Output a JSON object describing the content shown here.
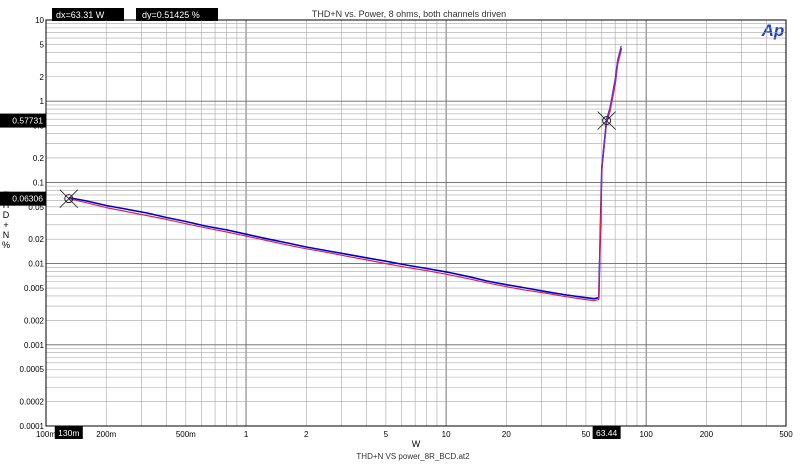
{
  "chart_data": {
    "type": "line",
    "title": "THD+N vs. Power, 8 ohms, both channels driven",
    "xlabel": "W",
    "ylabel_chars": [
      "T",
      "H",
      "D",
      "+",
      "N",
      "%"
    ],
    "footer": "THD+N VS power_8R_BCD.at2",
    "logo": "Ap",
    "x_scale": "log",
    "y_scale": "log",
    "xlim": [
      0.1,
      500
    ],
    "ylim": [
      0.0001,
      10
    ],
    "grid": true,
    "x_ticks": [
      {
        "v": 0.1,
        "label": "100m"
      },
      {
        "v": 0.2,
        "label": "200m"
      },
      {
        "v": 0.5,
        "label": "500m"
      },
      {
        "v": 1,
        "label": "1"
      },
      {
        "v": 2,
        "label": "2"
      },
      {
        "v": 5,
        "label": "5"
      },
      {
        "v": 10,
        "label": "10"
      },
      {
        "v": 20,
        "label": "20"
      },
      {
        "v": 50,
        "label": "50"
      },
      {
        "v": 100,
        "label": "100"
      },
      {
        "v": 200,
        "label": "200"
      },
      {
        "v": 500,
        "label": "500"
      }
    ],
    "y_ticks": [
      {
        "v": 10,
        "label": "10"
      },
      {
        "v": 5,
        "label": "5"
      },
      {
        "v": 2,
        "label": "2"
      },
      {
        "v": 1,
        "label": "1"
      },
      {
        "v": 0.5,
        "label": "0.5"
      },
      {
        "v": 0.2,
        "label": "0.2"
      },
      {
        "v": 0.1,
        "label": "0.1"
      },
      {
        "v": 0.05,
        "label": "0.05"
      },
      {
        "v": 0.02,
        "label": "0.02"
      },
      {
        "v": 0.01,
        "label": "0.01"
      },
      {
        "v": 0.005,
        "label": "0.005"
      },
      {
        "v": 0.002,
        "label": "0.002"
      },
      {
        "v": 0.001,
        "label": "0.001"
      },
      {
        "v": 0.0005,
        "label": "0.0005"
      },
      {
        "v": 0.0002,
        "label": "0.0002"
      },
      {
        "v": 0.0001,
        "label": "0.0001"
      }
    ],
    "series": [
      {
        "color": "#0000cc",
        "x": [
          0.13,
          0.16,
          0.2,
          0.25,
          0.32,
          0.4,
          0.5,
          0.63,
          0.8,
          1.0,
          1.3,
          1.6,
          2.0,
          2.5,
          3.2,
          4.0,
          5.0,
          6.3,
          8.0,
          10,
          13,
          16,
          20,
          25,
          32,
          40,
          50,
          55,
          58,
          60,
          63.44,
          66,
          70,
          72,
          75
        ],
        "y": [
          0.065,
          0.059,
          0.052,
          0.047,
          0.042,
          0.037,
          0.033,
          0.029,
          0.026,
          0.023,
          0.02,
          0.018,
          0.016,
          0.0145,
          0.013,
          0.0118,
          0.0107,
          0.0096,
          0.0087,
          0.0079,
          0.0069,
          0.0061,
          0.0055,
          0.005,
          0.0045,
          0.0041,
          0.0038,
          0.0037,
          0.0038,
          0.15,
          0.58,
          0.8,
          1.7,
          3.0,
          4.5
        ]
      },
      {
        "color": "#dd2255",
        "x": [
          0.13,
          0.16,
          0.2,
          0.25,
          0.32,
          0.4,
          0.5,
          0.63,
          0.8,
          1.0,
          1.3,
          1.6,
          2.0,
          2.5,
          3.2,
          4.0,
          5.0,
          6.3,
          8.0,
          10,
          13,
          16,
          20,
          25,
          32,
          40,
          50,
          55,
          58,
          60,
          63.44,
          66,
          70,
          72,
          75
        ],
        "y": [
          0.063,
          0.056,
          0.049,
          0.044,
          0.039,
          0.035,
          0.031,
          0.0275,
          0.0245,
          0.0218,
          0.019,
          0.017,
          0.0152,
          0.0138,
          0.0123,
          0.0111,
          0.01,
          0.009,
          0.0082,
          0.0074,
          0.0065,
          0.0058,
          0.0052,
          0.0047,
          0.0043,
          0.0039,
          0.0036,
          0.0035,
          0.0036,
          0.14,
          0.55,
          0.75,
          1.6,
          2.8,
          4.2
        ]
      },
      {
        "color": "#6633cc",
        "x": [
          60,
          63.44,
          66,
          70,
          72,
          75
        ],
        "y": [
          0.16,
          0.6,
          0.85,
          1.9,
          3.2,
          4.8
        ]
      }
    ],
    "cursors": [
      {
        "x": 0.13,
        "y": 0.06306,
        "x_label": "130m",
        "y_label": "0.06306"
      },
      {
        "x": 63.44,
        "y": 0.57731,
        "x_label": "63.44",
        "y_label": "0.57731"
      }
    ],
    "readouts": {
      "dx": "dx=63.31  W",
      "dy": "dy=0.51425  %"
    }
  }
}
